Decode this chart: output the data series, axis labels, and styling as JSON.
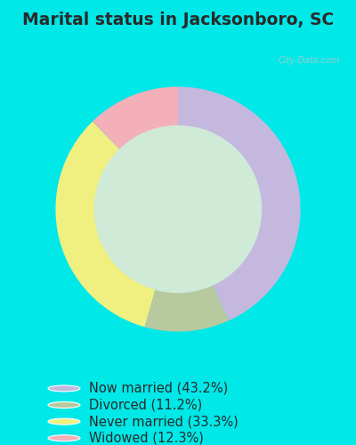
{
  "title": "Marital status in Jacksonboro, SC",
  "categories": [
    "Now married",
    "Divorced",
    "Never married",
    "Widowed"
  ],
  "values": [
    43.2,
    11.2,
    33.3,
    12.3
  ],
  "colors": [
    "#c4b8df",
    "#b8c9a0",
    "#f0f080",
    "#f4b0b8"
  ],
  "legend_labels": [
    "Now married (43.2%)",
    "Divorced (11.2%)",
    "Never married (33.3%)",
    "Widowed (12.3%)"
  ],
  "bg_outer": "#00e8e8",
  "bg_chart_color": "#d0ead8",
  "title_fontsize": 13.5,
  "legend_fontsize": 10.5,
  "donut_width": 0.32,
  "watermark": "City-Data.com"
}
